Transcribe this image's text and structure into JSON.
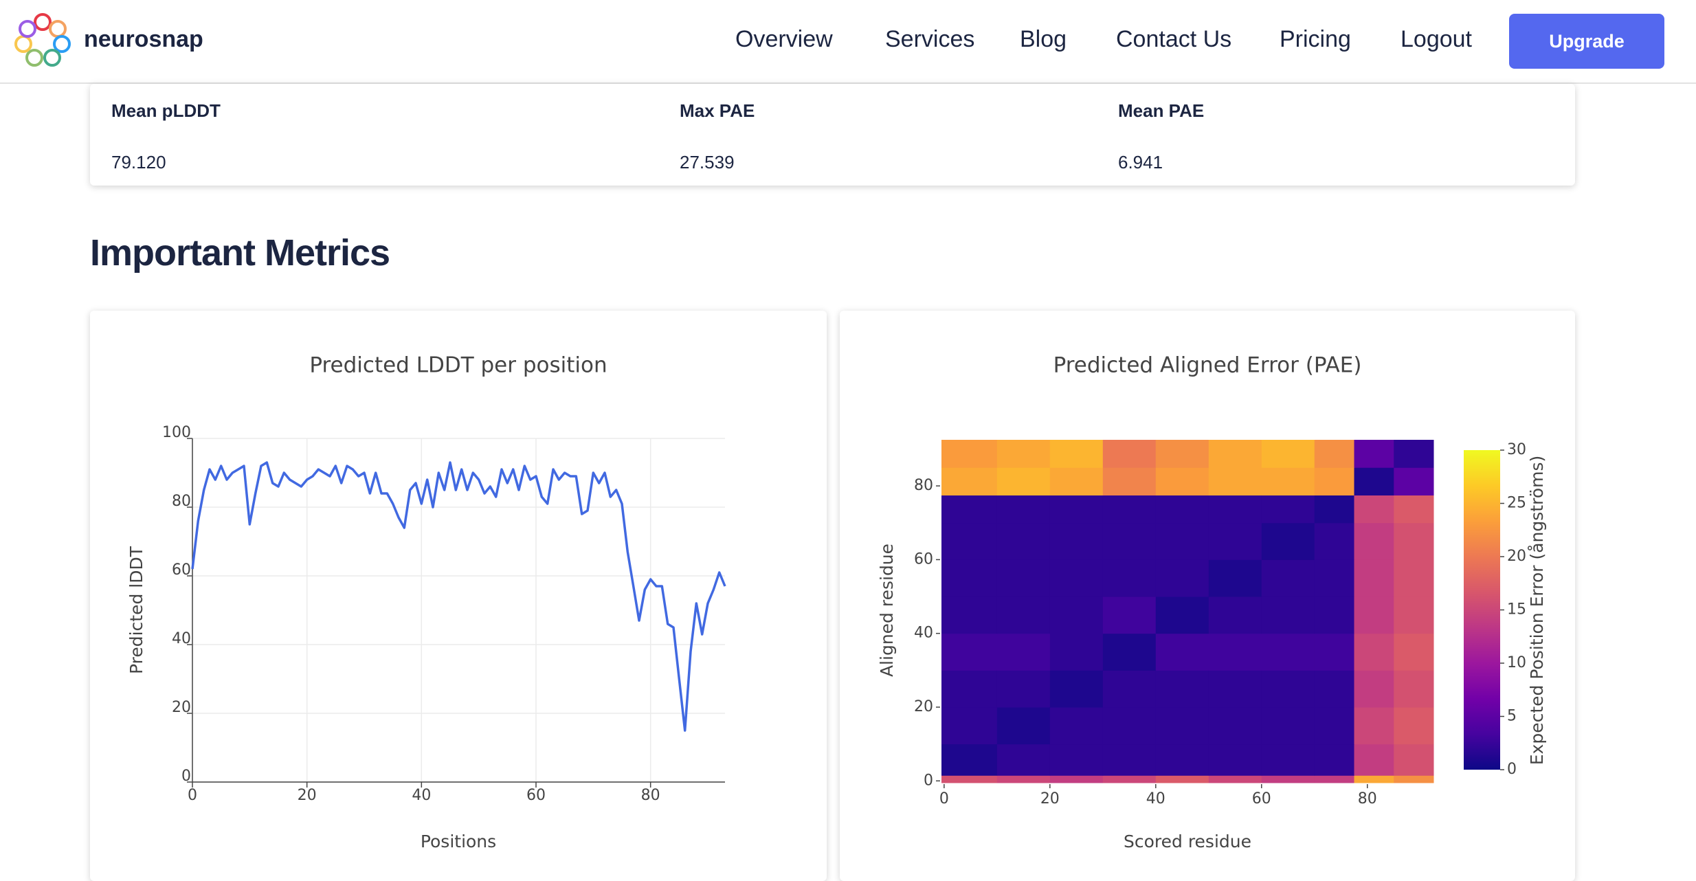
{
  "nav": {
    "brand": "neurosnap",
    "links": [
      "Overview",
      "Services",
      "Blog",
      "Contact Us",
      "Pricing",
      "Logout"
    ],
    "button": "Upgrade"
  },
  "metrics": {
    "headers": [
      "Mean pLDDT",
      "Max PAE",
      "Mean PAE"
    ],
    "values": [
      "79.120",
      "27.539",
      "6.941"
    ]
  },
  "section_title": "Important Metrics",
  "chart_data": [
    {
      "type": "line",
      "title": "Predicted LDDT per position",
      "x_label": "Positions",
      "y_label": "Predicted lDDT",
      "color": "#4169e1",
      "x": [
        0,
        1,
        2,
        3,
        4,
        5,
        6,
        7,
        8,
        9,
        10,
        11,
        12,
        13,
        14,
        15,
        16,
        17,
        18,
        19,
        20,
        21,
        22,
        23,
        24,
        25,
        26,
        27,
        28,
        29,
        30,
        31,
        32,
        33,
        34,
        35,
        36,
        37,
        38,
        39,
        40,
        41,
        42,
        43,
        44,
        45,
        46,
        47,
        48,
        49,
        50,
        51,
        52,
        53,
        54,
        55,
        56,
        57,
        58,
        59,
        60,
        61,
        62,
        63,
        64,
        65,
        66,
        67,
        68,
        69,
        70,
        71,
        72,
        73,
        74,
        75,
        76,
        77,
        78,
        79,
        80,
        81,
        82,
        83,
        84,
        85,
        86,
        87,
        88,
        89,
        90,
        91,
        92,
        93
      ],
      "values": [
        62,
        76,
        85,
        91,
        88,
        92,
        88,
        90,
        91,
        92,
        75,
        84,
        92,
        93,
        87,
        86,
        90,
        88,
        87,
        86,
        88,
        89,
        91,
        90,
        89,
        92,
        87,
        92,
        91,
        89,
        90,
        84,
        90,
        84,
        84,
        81,
        77,
        74,
        85,
        87,
        81,
        88,
        80,
        90,
        85,
        93,
        85,
        91,
        85,
        90,
        88,
        84,
        86,
        83,
        91,
        87,
        91,
        85,
        92,
        88,
        89,
        83,
        81,
        91,
        88,
        90,
        89,
        89,
        78,
        79,
        90,
        87,
        90,
        83,
        85,
        81,
        67,
        57,
        47,
        56,
        59,
        57,
        57,
        46,
        45,
        30,
        15,
        38,
        52,
        43,
        52,
        56,
        61,
        57
      ],
      "xlim": [
        0,
        93
      ],
      "xticks": [
        0,
        20,
        40,
        60,
        80
      ],
      "ylim": [
        0,
        100
      ],
      "yticks": [
        0,
        20,
        40,
        60,
        80,
        100
      ],
      "grid": true
    },
    {
      "type": "heatmap",
      "title": "Predicted Aligned Error (PAE)",
      "x_label": "Scored residue",
      "y_label": "Aligned residue",
      "colorbar_title": "Expected Position Error (ångströms)",
      "colorscale": [
        "#0d0887",
        "#46039f",
        "#7201a8",
        "#9c179e",
        "#bd3786",
        "#d8576b",
        "#ed7953",
        "#fb9f3a",
        "#fdca26",
        "#f0f921"
      ],
      "x_edges": [
        -0.5,
        10,
        20,
        30,
        40,
        50,
        60,
        70,
        77.5,
        85,
        92.5
      ],
      "y_edges": [
        -0.5,
        1.5,
        10,
        20,
        30,
        40,
        50,
        60,
        70,
        77.5,
        85,
        92.5
      ],
      "values": [
        [
          16,
          15,
          14,
          15,
          17,
          15,
          14,
          14,
          24,
          22
        ],
        [
          1,
          2,
          2,
          2,
          2,
          2,
          2,
          2,
          14,
          16
        ],
        [
          2,
          1,
          2,
          2,
          2,
          2,
          2,
          2,
          15,
          17
        ],
        [
          2,
          2,
          1,
          2,
          2,
          2,
          2,
          2,
          14,
          16
        ],
        [
          3,
          3,
          2,
          1,
          3,
          3,
          3,
          3,
          15,
          17
        ],
        [
          2,
          2,
          2,
          3,
          1,
          2,
          2,
          2,
          14,
          16
        ],
        [
          2,
          2,
          2,
          2,
          2,
          1,
          2,
          2,
          14,
          16
        ],
        [
          2,
          2,
          2,
          2,
          2,
          2,
          1,
          2,
          14,
          16
        ],
        [
          2,
          2,
          2,
          2,
          2,
          2,
          2,
          1,
          15,
          17
        ],
        [
          24,
          25,
          24,
          21,
          23,
          24,
          24,
          23,
          1,
          5
        ],
        [
          23,
          24,
          25,
          20,
          22,
          24,
          25,
          22,
          5,
          2
        ]
      ],
      "xlim": [
        -0.5,
        92.5
      ],
      "xticks": [
        0,
        20,
        40,
        60,
        80
      ],
      "ylim": [
        -0.5,
        92.5
      ],
      "yticks": [
        0,
        20,
        40,
        60,
        80
      ],
      "zlim": [
        0,
        30
      ],
      "zticks": [
        0,
        5,
        10,
        15,
        20,
        25,
        30
      ]
    }
  ]
}
